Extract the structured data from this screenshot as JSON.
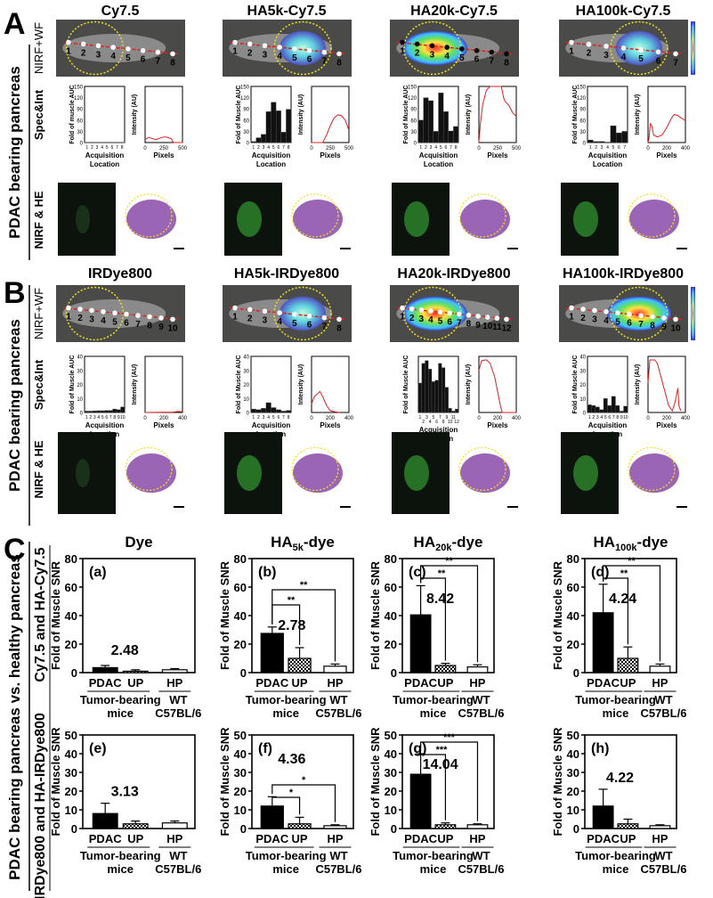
{
  "panel_a": {
    "letter": "A",
    "side_label": "PDAC bearing pancreas",
    "row_labels": [
      "NIRF+WF",
      "Spec&Int",
      "NIRF & HE"
    ],
    "columns": [
      {
        "title": "Cy7.5",
        "points": [
          "1",
          "2",
          "3",
          "4",
          "5",
          "6",
          "7",
          "8"
        ],
        "signal": "none",
        "bar_ylabel": "Fold of muscle AUC",
        "line_ylabel": "Intensity (AU)",
        "bar_xlabel": [
          "Acquisition",
          "Location"
        ],
        "line_xlabel": "Pixels",
        "bar_ymax": 150,
        "bar_yticks": [
          "0",
          "30",
          "60",
          "90",
          "120",
          "150"
        ],
        "bars": [
          1,
          1,
          1,
          1,
          1,
          1,
          1,
          1
        ],
        "bar_cats": [
          "1",
          "2",
          "3",
          "4",
          "5",
          "6",
          "7",
          "8"
        ],
        "line_xmax": 500,
        "line_ymax": 150,
        "line_xticks": [
          "0",
          "250",
          "500"
        ],
        "line": [
          [
            0,
            8
          ],
          [
            50,
            14
          ],
          [
            100,
            10
          ],
          [
            150,
            8
          ],
          [
            200,
            12
          ],
          [
            250,
            15
          ],
          [
            300,
            14
          ],
          [
            350,
            10
          ],
          [
            380,
            0
          ],
          [
            500,
            0
          ]
        ]
      },
      {
        "title": "HA5k-Cy7.5",
        "points": [
          "1",
          "2",
          "3",
          "4",
          "5",
          "6",
          "7",
          "8"
        ],
        "signal": "mid",
        "bar_ylabel": "Fold of Muscle AUC",
        "line_ylabel": "Intensity (AU)",
        "bar_xlabel": [
          "Acquisition",
          "Location"
        ],
        "line_xlabel": "Pixels",
        "bar_ymax": 150,
        "bar_yticks": [
          "0",
          "30",
          "60",
          "90",
          "120",
          "150"
        ],
        "bars": [
          3,
          13,
          22,
          83,
          108,
          85,
          28,
          89
        ],
        "bar_cats": [
          "1",
          "2",
          "3",
          "4",
          "5",
          "6",
          "7",
          "8"
        ],
        "line_xmax": 500,
        "line_ymax": 150,
        "line_xticks": [
          "0",
          "250",
          "500"
        ],
        "line": [
          [
            0,
            0
          ],
          [
            150,
            0
          ],
          [
            200,
            20
          ],
          [
            250,
            45
          ],
          [
            300,
            65
          ],
          [
            350,
            74
          ],
          [
            400,
            72
          ],
          [
            450,
            60
          ],
          [
            500,
            33
          ]
        ]
      },
      {
        "title": "HA20k-Cy7.5",
        "points": [
          "1",
          "2",
          "3",
          "4",
          "5",
          "6",
          "7",
          "8"
        ],
        "signal": "high",
        "bar_ylabel": "Fold of Muscle AUC",
        "line_ylabel": "Intensity (AU)",
        "bar_xlabel": [
          "Acquisition",
          "Location"
        ],
        "line_xlabel": "Pixels",
        "bar_ymax": 150,
        "bar_yticks": [
          "0",
          "30",
          "60",
          "90",
          "120",
          "150"
        ],
        "bars": [
          60,
          120,
          112,
          30,
          133,
          83,
          31,
          43
        ],
        "bar_cats": [
          "1",
          "2",
          "3",
          "4",
          "5",
          "6",
          "7",
          "8"
        ],
        "line_xmax": 500,
        "line_ymax": 150,
        "line_xticks": [
          "0",
          "250",
          "500"
        ],
        "line": [
          [
            0,
            0
          ],
          [
            20,
            50
          ],
          [
            50,
            100
          ],
          [
            100,
            140
          ],
          [
            150,
            150
          ],
          [
            200,
            150
          ],
          [
            250,
            150
          ],
          [
            300,
            150
          ],
          [
            330,
            120
          ],
          [
            350,
            110
          ],
          [
            400,
            100
          ],
          [
            450,
            80
          ],
          [
            500,
            70
          ]
        ]
      },
      {
        "title": "HA100k-Cy7.5",
        "points": [
          "1",
          "2",
          "3",
          "4",
          "5",
          "6",
          "7"
        ],
        "signal": "mid",
        "bar_ylabel": "Fold of Muscle AUC",
        "line_ylabel": "Intensity (AU)",
        "bar_xlabel": [
          "Acquisition",
          "Location"
        ],
        "line_xlabel": "Pixels",
        "bar_ymax": 150,
        "bar_yticks": [
          "0",
          "30",
          "60",
          "90",
          "120",
          "150"
        ],
        "bars": [
          7,
          3,
          3,
          0,
          45,
          26,
          30
        ],
        "bar_cats": [
          "1",
          "2",
          "3",
          "4",
          "5",
          "6",
          "7"
        ],
        "line_xmax": 400,
        "line_ymax": 150,
        "line_xticks": [
          "0",
          "200",
          "400"
        ],
        "line": [
          [
            0,
            0
          ],
          [
            10,
            10
          ],
          [
            25,
            50
          ],
          [
            40,
            45
          ],
          [
            60,
            20
          ],
          [
            100,
            15
          ],
          [
            150,
            20
          ],
          [
            200,
            40
          ],
          [
            250,
            65
          ],
          [
            280,
            75
          ],
          [
            320,
            72
          ],
          [
            360,
            65
          ],
          [
            400,
            58
          ]
        ]
      }
    ]
  },
  "panel_b": {
    "letter": "B",
    "side_label": "PDAC bearing pancreas",
    "row_labels": [
      "NIRF+WF",
      "Spec&Int",
      "NIRF & HE"
    ],
    "columns": [
      {
        "title": "IRDye800",
        "points": [
          "1",
          "2",
          "3",
          "4",
          "5",
          "6",
          "7",
          "8",
          "9",
          "10"
        ],
        "signal": "none",
        "bar_ylabel": "Fold of Muscle AUC",
        "line_ylabel": "Intensity (AU)",
        "bar_xlabel": [
          "Acquisition",
          "Location"
        ],
        "line_xlabel": "Pixels",
        "bar_ymax": 40,
        "bar_yticks": [
          "0",
          "10",
          "20",
          "30",
          "40"
        ],
        "bars": [
          1,
          1,
          1.2,
          1.3,
          1.3,
          1.5,
          1.5,
          2.5,
          2,
          4
        ],
        "bar_cats": [
          "1",
          "2",
          "3",
          "4",
          "5",
          "6",
          "7",
          "8",
          "9",
          "10"
        ],
        "line_xmax": 400,
        "line_ymax": 160,
        "line_xticks": [
          "0",
          "200",
          "400"
        ],
        "line": [
          [
            0,
            0
          ],
          [
            300,
            1
          ],
          [
            350,
            3
          ],
          [
            400,
            2
          ]
        ]
      },
      {
        "title": "HA5k-IRDye800",
        "points": [
          "1",
          "2",
          "3",
          "4",
          "5",
          "6",
          "7",
          "8"
        ],
        "signal": "low",
        "bar_ylabel": "Fold of Muscle AUC",
        "line_ylabel": "Intensity (AU)",
        "bar_xlabel": [
          "Acquisition",
          "Location"
        ],
        "line_xlabel": "Pixels",
        "bar_ymax": 40,
        "bar_yticks": [
          "0",
          "10",
          "20",
          "30",
          "40"
        ],
        "bars": [
          2.5,
          2,
          3,
          7,
          3.5,
          2,
          1,
          1.5
        ],
        "bar_cats": [
          "1",
          "2",
          "3",
          "4",
          "5",
          "6",
          "7",
          "8"
        ],
        "line_xmax": 400,
        "line_ymax": 160,
        "line_xticks": [
          "0",
          "200",
          "400"
        ],
        "line": [
          [
            0,
            25
          ],
          [
            30,
            45
          ],
          [
            90,
            60
          ],
          [
            120,
            45
          ],
          [
            160,
            20
          ],
          [
            200,
            5
          ],
          [
            250,
            2
          ],
          [
            300,
            0
          ]
        ]
      },
      {
        "title": "HA20k-IRDye800",
        "points": [
          "1",
          "2",
          "3",
          "4",
          "5",
          "6",
          "7",
          "8",
          "9",
          "10",
          "11",
          "12"
        ],
        "signal": "high",
        "bar_ylabel": "Fold of Muscle AUC",
        "line_ylabel": "Intensity (AU)",
        "bar_xlabel": [
          "Acquisition",
          "Location"
        ],
        "line_xlabel": "Pixels",
        "bar_ymax": 40,
        "bar_yticks": [],
        "bars": [
          21,
          35,
          37,
          31,
          22,
          23,
          35,
          32,
          18,
          3,
          1,
          2.5
        ],
        "bar_cats": [
          "1",
          "2",
          "3",
          "4",
          "5",
          "6",
          "7",
          "8",
          "9",
          "10",
          "11",
          "12"
        ],
        "line_xmax": 400,
        "line_ymax": 160,
        "line_xticks": [
          "0",
          "200",
          "400"
        ],
        "line": [
          [
            0,
            120
          ],
          [
            30,
            148
          ],
          [
            80,
            150
          ],
          [
            120,
            140
          ],
          [
            170,
            100
          ],
          [
            200,
            60
          ],
          [
            230,
            20
          ],
          [
            250,
            0
          ],
          [
            400,
            0
          ]
        ]
      },
      {
        "title": "HA100k-IRDye800",
        "points": [
          "1",
          "2",
          "3",
          "4",
          "5",
          "6",
          "7",
          "8",
          "9",
          "10"
        ],
        "signal": "high",
        "bar_ylabel": "Fold of Muscle AUC",
        "line_ylabel": "Intensity (AU)",
        "bar_xlabel": [
          "Acquisition",
          "Location"
        ],
        "line_xlabel": "Pixels",
        "bar_ymax": 40,
        "bar_yticks": [
          "0",
          "10",
          "20",
          "30",
          "40"
        ],
        "bars": [
          5.5,
          5,
          4,
          2,
          10,
          5,
          11.5,
          5,
          1,
          4.5
        ],
        "bar_cats": [
          "1",
          "2",
          "3",
          "4",
          "5",
          "6",
          "7",
          "8",
          "9",
          "10"
        ],
        "line_xmax": 400,
        "line_ymax": 160,
        "line_xticks": [
          "0",
          "200",
          "400"
        ],
        "line": [
          [
            0,
            85
          ],
          [
            20,
            150
          ],
          [
            70,
            150
          ],
          [
            100,
            140
          ],
          [
            150,
            90
          ],
          [
            180,
            60
          ],
          [
            220,
            20
          ],
          [
            260,
            5
          ],
          [
            290,
            30
          ],
          [
            320,
            70
          ],
          [
            330,
            20
          ],
          [
            350,
            5
          ]
        ]
      }
    ]
  },
  "panel_c": {
    "letter": "C",
    "side_label": "PDAC bearing pancreas vs. healthy pancreas",
    "row_labels": [
      "Cy7.5 and HA-Cy7.5",
      "IRDye800 and HA-IRDye800"
    ],
    "column_titles": [
      {
        "main": "Dye",
        "sub": "",
        "rest": ""
      },
      {
        "main": "HA",
        "sub": "5k",
        "rest": "-dye"
      },
      {
        "main": "HA",
        "sub": "20k",
        "rest": "-dye"
      },
      {
        "main": "HA",
        "sub": "100k",
        "rest": "-dye"
      }
    ],
    "group_labels": {
      "tumor": [
        "Tumor-bearing",
        "mice"
      ],
      "wt": [
        "WT",
        "C57BL/6"
      ]
    }
  },
  "chart_data": [
    {
      "type": "bar",
      "id": "a",
      "label": "(a)",
      "ylabel": "Fold of Muscle SNR",
      "categories": [
        "PDAC",
        "UP",
        "HP"
      ],
      "values": [
        3.5,
        1,
        2
      ],
      "errors": [
        1.5,
        1,
        0.8
      ],
      "ylim": [
        0,
        80
      ],
      "yticks": [
        "0",
        "20",
        "40",
        "60",
        "80"
      ],
      "fold_label": "2.48",
      "significance": []
    },
    {
      "type": "bar",
      "id": "b",
      "label": "(b)",
      "ylabel": "Fold of Muscle SNR",
      "categories": [
        "PDAC",
        "UP",
        "HP"
      ],
      "values": [
        27.5,
        10,
        4.5
      ],
      "errors": [
        4.5,
        7.5,
        1.5
      ],
      "ylim": [
        0,
        80
      ],
      "yticks": [
        "0",
        "20",
        "40",
        "60",
        "80"
      ],
      "fold_label": "2.78",
      "significance": [
        {
          "to": "UP",
          "mark": "**"
        },
        {
          "to": "HP",
          "mark": "**"
        }
      ]
    },
    {
      "type": "bar",
      "id": "c",
      "label": "(c)",
      "ylabel": "Fold of Muscle SNR",
      "categories": [
        "PDAC",
        "UP",
        "HP"
      ],
      "values": [
        40.5,
        5,
        4
      ],
      "errors": [
        20.5,
        1.5,
        1.5
      ],
      "ylim": [
        0,
        80
      ],
      "yticks": [
        "0",
        "20",
        "40",
        "60",
        "80"
      ],
      "fold_label": "8.42",
      "significance": [
        {
          "to": "UP",
          "mark": "**"
        },
        {
          "to": "HP",
          "mark": "**"
        }
      ]
    },
    {
      "type": "bar",
      "id": "d",
      "label": "(d)",
      "ylabel": "Fold of Muscle SNR",
      "categories": [
        "PDAC",
        "UP",
        "HP"
      ],
      "values": [
        42,
        10,
        4.5
      ],
      "errors": [
        20,
        8,
        1.5
      ],
      "ylim": [
        0,
        80
      ],
      "yticks": [
        "0",
        "20",
        "40",
        "60",
        "80"
      ],
      "fold_label": "4.24",
      "significance": [
        {
          "to": "UP",
          "mark": "**"
        },
        {
          "to": "HP",
          "mark": "**"
        }
      ]
    },
    {
      "type": "bar",
      "id": "e",
      "label": "(e)",
      "ylabel": "Fold of Muscle SNR",
      "categories": [
        "PDAC",
        "UP",
        "HP"
      ],
      "values": [
        8,
        2.5,
        3
      ],
      "errors": [
        5.5,
        1.5,
        1
      ],
      "ylim": [
        0,
        50
      ],
      "yticks": [
        "0",
        "10",
        "20",
        "30",
        "40",
        "50"
      ],
      "fold_label": "3.13",
      "significance": []
    },
    {
      "type": "bar",
      "id": "f",
      "label": "(f)",
      "ylabel": "Fold of Muscle SNR",
      "categories": [
        "PDAC",
        "UP",
        "HP"
      ],
      "values": [
        12,
        2.5,
        1.5
      ],
      "errors": [
        5,
        3.5,
        0.5
      ],
      "ylim": [
        0,
        50
      ],
      "yticks": [
        "0",
        "10",
        "20",
        "30",
        "40",
        "50"
      ],
      "fold_label": "4.36",
      "significance": [
        {
          "to": "UP",
          "mark": "*"
        },
        {
          "to": "HP",
          "mark": "*"
        }
      ]
    },
    {
      "type": "bar",
      "id": "g",
      "label": "(g)",
      "ylabel": "Fold of Muscle SNR",
      "categories": [
        "PDAC",
        "UP",
        "HP"
      ],
      "values": [
        29,
        2,
        2
      ],
      "errors": [
        11,
        1,
        0.5
      ],
      "ylim": [
        0,
        50
      ],
      "yticks": [
        "0",
        "10",
        "20",
        "30",
        "40",
        "50"
      ],
      "fold_label": "14.04",
      "significance": [
        {
          "to": "UP",
          "mark": "***"
        },
        {
          "to": "HP",
          "mark": "***"
        }
      ]
    },
    {
      "type": "bar",
      "id": "h",
      "label": "(h)",
      "ylabel": "Fold of Muscle SNR",
      "categories": [
        "PDAC",
        "UP",
        "HP"
      ],
      "values": [
        12,
        2.5,
        1.5
      ],
      "errors": [
        9,
        2.5,
        0.5
      ],
      "ylim": [
        0,
        50
      ],
      "yticks": [
        "0",
        "10",
        "20",
        "30",
        "40",
        "50"
      ],
      "fold_label": "4.22",
      "significance": []
    }
  ]
}
